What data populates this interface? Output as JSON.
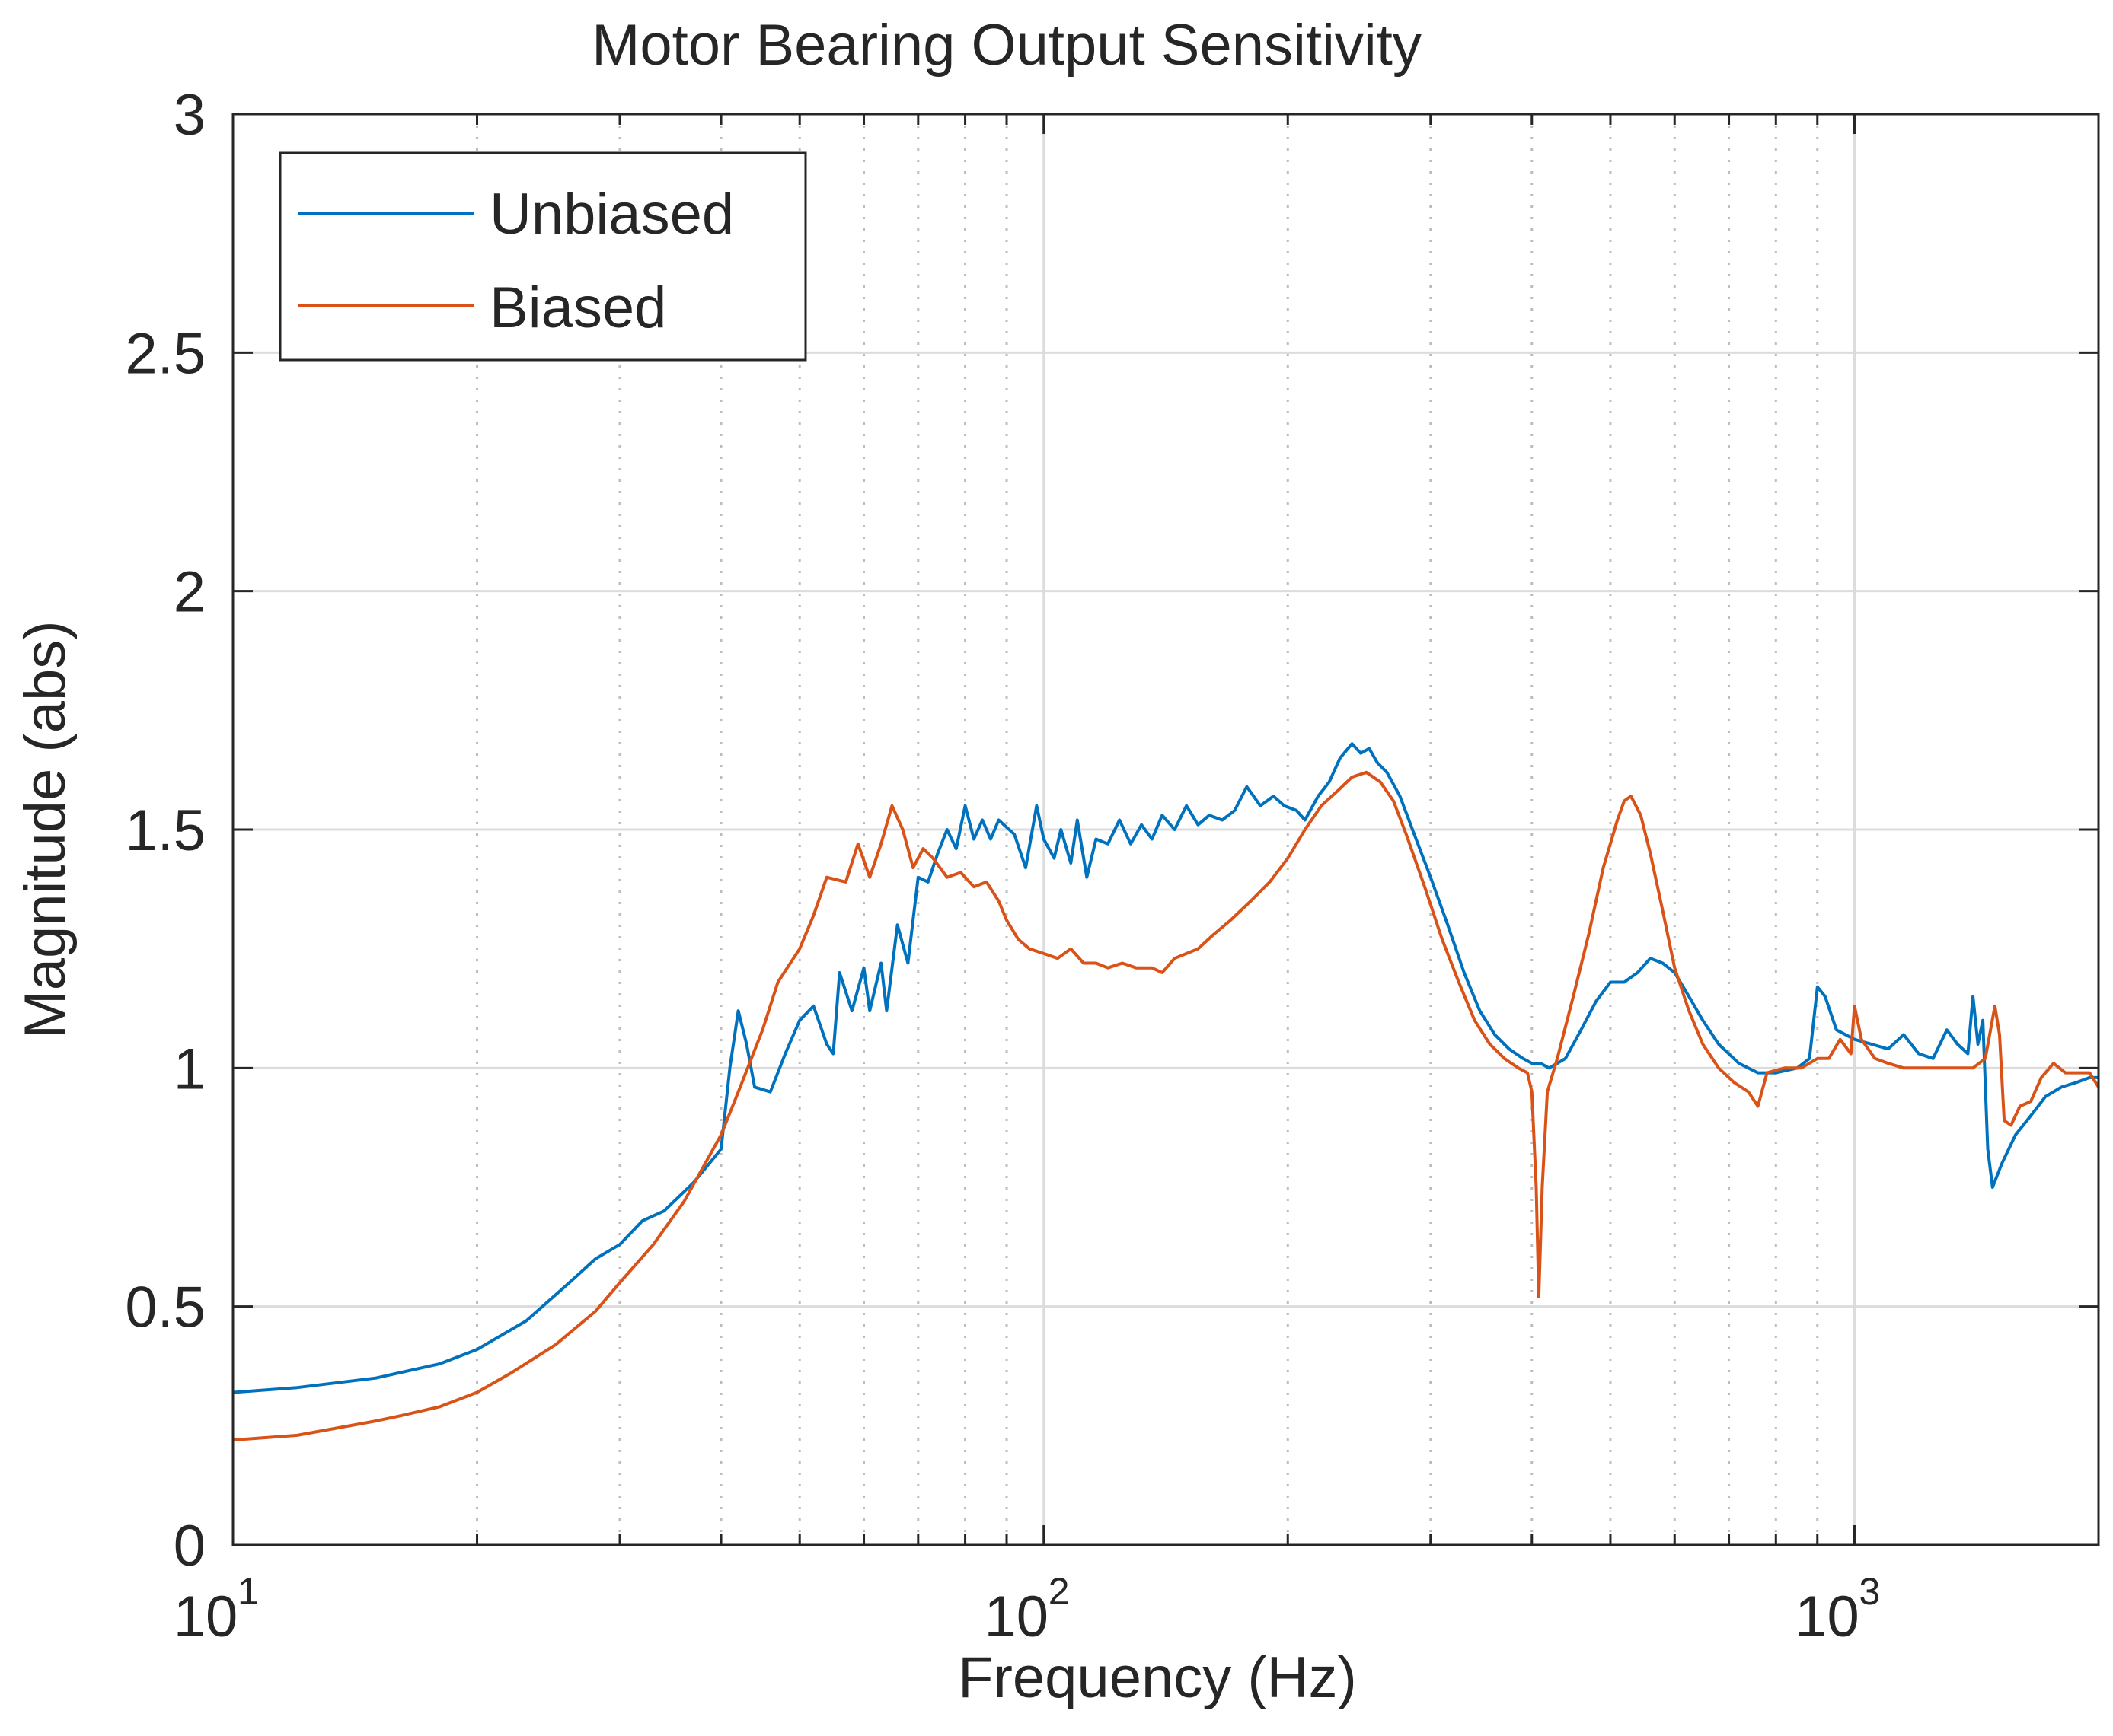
{
  "chart_data": {
    "type": "line",
    "title": "Motor Bearing Output Sensitivity",
    "xlabel": "Frequency  (Hz)",
    "ylabel": "Magnitude (abs)",
    "xscale": "log",
    "xlim": [
      10,
      2000
    ],
    "ylim": [
      0,
      3
    ],
    "grid": true,
    "legend_location": "top-left",
    "x_ticks": [
      {
        "value": 10,
        "base": "10",
        "exp": "1"
      },
      {
        "value": 100,
        "base": "10",
        "exp": "2"
      },
      {
        "value": 1000,
        "base": "10",
        "exp": "3"
      }
    ],
    "y_ticks": [
      {
        "value": 0,
        "label": "0"
      },
      {
        "value": 0.5,
        "label": "0.5"
      },
      {
        "value": 1,
        "label": "1"
      },
      {
        "value": 1.5,
        "label": "1.5"
      },
      {
        "value": 2,
        "label": "2"
      },
      {
        "value": 2.5,
        "label": "2.5"
      },
      {
        "value": 3,
        "label": "3"
      }
    ],
    "series": [
      {
        "name": "Unbiased",
        "color": "#0072BD",
        "points": [
          [
            10,
            0.32
          ],
          [
            12,
            0.33
          ],
          [
            15,
            0.35
          ],
          [
            18,
            0.38
          ],
          [
            20,
            0.41
          ],
          [
            23,
            0.47
          ],
          [
            26,
            0.55
          ],
          [
            28,
            0.6
          ],
          [
            30,
            0.63
          ],
          [
            32,
            0.68
          ],
          [
            34,
            0.7
          ],
          [
            37,
            0.76
          ],
          [
            40,
            0.83
          ],
          [
            41,
            1.0
          ],
          [
            42,
            1.12
          ],
          [
            43,
            1.05
          ],
          [
            44,
            0.96
          ],
          [
            46,
            0.95
          ],
          [
            48,
            1.03
          ],
          [
            50,
            1.1
          ],
          [
            52,
            1.13
          ],
          [
            54,
            1.05
          ],
          [
            55,
            1.03
          ],
          [
            56,
            1.2
          ],
          [
            58,
            1.12
          ],
          [
            60,
            1.21
          ],
          [
            61,
            1.12
          ],
          [
            63,
            1.22
          ],
          [
            64,
            1.12
          ],
          [
            66,
            1.3
          ],
          [
            68,
            1.22
          ],
          [
            70,
            1.4
          ],
          [
            72,
            1.39
          ],
          [
            74,
            1.45
          ],
          [
            76,
            1.5
          ],
          [
            78,
            1.46
          ],
          [
            80,
            1.55
          ],
          [
            82,
            1.48
          ],
          [
            84,
            1.52
          ],
          [
            86,
            1.48
          ],
          [
            88,
            1.52
          ],
          [
            92,
            1.49
          ],
          [
            95,
            1.42
          ],
          [
            98,
            1.55
          ],
          [
            100,
            1.48
          ],
          [
            103,
            1.44
          ],
          [
            105,
            1.5
          ],
          [
            108,
            1.43
          ],
          [
            110,
            1.52
          ],
          [
            113,
            1.4
          ],
          [
            116,
            1.48
          ],
          [
            120,
            1.47
          ],
          [
            124,
            1.52
          ],
          [
            128,
            1.47
          ],
          [
            132,
            1.51
          ],
          [
            136,
            1.48
          ],
          [
            140,
            1.53
          ],
          [
            145,
            1.5
          ],
          [
            150,
            1.55
          ],
          [
            155,
            1.51
          ],
          [
            160,
            1.53
          ],
          [
            166,
            1.52
          ],
          [
            172,
            1.54
          ],
          [
            178,
            1.59
          ],
          [
            185,
            1.55
          ],
          [
            192,
            1.57
          ],
          [
            198,
            1.55
          ],
          [
            205,
            1.54
          ],
          [
            210,
            1.52
          ],
          [
            218,
            1.57
          ],
          [
            225,
            1.6
          ],
          [
            232,
            1.65
          ],
          [
            240,
            1.68
          ],
          [
            246,
            1.66
          ],
          [
            252,
            1.67
          ],
          [
            258,
            1.64
          ],
          [
            265,
            1.62
          ],
          [
            275,
            1.57
          ],
          [
            285,
            1.5
          ],
          [
            300,
            1.4
          ],
          [
            315,
            1.3
          ],
          [
            330,
            1.2
          ],
          [
            345,
            1.12
          ],
          [
            360,
            1.07
          ],
          [
            375,
            1.04
          ],
          [
            390,
            1.02
          ],
          [
            400,
            1.01
          ],
          [
            410,
            1.01
          ],
          [
            420,
            1.0
          ],
          [
            430,
            1.01
          ],
          [
            440,
            1.02
          ],
          [
            460,
            1.08
          ],
          [
            480,
            1.14
          ],
          [
            500,
            1.18
          ],
          [
            520,
            1.18
          ],
          [
            540,
            1.2
          ],
          [
            560,
            1.23
          ],
          [
            580,
            1.22
          ],
          [
            600,
            1.2
          ],
          [
            625,
            1.15
          ],
          [
            650,
            1.1
          ],
          [
            680,
            1.05
          ],
          [
            720,
            1.01
          ],
          [
            760,
            0.99
          ],
          [
            800,
            0.99
          ],
          [
            850,
            1.0
          ],
          [
            880,
            1.02
          ],
          [
            900,
            1.17
          ],
          [
            920,
            1.15
          ],
          [
            950,
            1.08
          ],
          [
            1000,
            1.06
          ],
          [
            1050,
            1.05
          ],
          [
            1100,
            1.04
          ],
          [
            1150,
            1.07
          ],
          [
            1200,
            1.03
          ],
          [
            1250,
            1.02
          ],
          [
            1300,
            1.08
          ],
          [
            1340,
            1.05
          ],
          [
            1380,
            1.03
          ],
          [
            1400,
            1.15
          ],
          [
            1420,
            1.05
          ],
          [
            1440,
            1.1
          ],
          [
            1460,
            0.83
          ],
          [
            1480,
            0.75
          ],
          [
            1520,
            0.8
          ],
          [
            1580,
            0.86
          ],
          [
            1650,
            0.9
          ],
          [
            1720,
            0.94
          ],
          [
            1800,
            0.96
          ],
          [
            1880,
            0.97
          ],
          [
            1950,
            0.98
          ],
          [
            2000,
            0.98
          ]
        ]
      },
      {
        "name": "Biased",
        "color": "#D95319",
        "points": [
          [
            10,
            0.22
          ],
          [
            12,
            0.23
          ],
          [
            15,
            0.26
          ],
          [
            16,
            0.27
          ],
          [
            18,
            0.29
          ],
          [
            20,
            0.32
          ],
          [
            22,
            0.36
          ],
          [
            25,
            0.42
          ],
          [
            28,
            0.49
          ],
          [
            30,
            0.55
          ],
          [
            33,
            0.63
          ],
          [
            36,
            0.72
          ],
          [
            40,
            0.86
          ],
          [
            42,
            0.95
          ],
          [
            45,
            1.08
          ],
          [
            47,
            1.18
          ],
          [
            50,
            1.25
          ],
          [
            52,
            1.32
          ],
          [
            54,
            1.4
          ],
          [
            57,
            1.39
          ],
          [
            59,
            1.47
          ],
          [
            61,
            1.4
          ],
          [
            63,
            1.47
          ],
          [
            65,
            1.55
          ],
          [
            67,
            1.5
          ],
          [
            69,
            1.42
          ],
          [
            71,
            1.46
          ],
          [
            73,
            1.44
          ],
          [
            76,
            1.4
          ],
          [
            79,
            1.41
          ],
          [
            82,
            1.38
          ],
          [
            85,
            1.39
          ],
          [
            88,
            1.35
          ],
          [
            90,
            1.31
          ],
          [
            93,
            1.27
          ],
          [
            96,
            1.25
          ],
          [
            100,
            1.24
          ],
          [
            104,
            1.23
          ],
          [
            108,
            1.25
          ],
          [
            112,
            1.22
          ],
          [
            116,
            1.22
          ],
          [
            120,
            1.21
          ],
          [
            125,
            1.22
          ],
          [
            130,
            1.21
          ],
          [
            136,
            1.21
          ],
          [
            140,
            1.2
          ],
          [
            145,
            1.23
          ],
          [
            150,
            1.24
          ],
          [
            155,
            1.25
          ],
          [
            162,
            1.28
          ],
          [
            170,
            1.31
          ],
          [
            180,
            1.35
          ],
          [
            190,
            1.39
          ],
          [
            200,
            1.44
          ],
          [
            210,
            1.5
          ],
          [
            220,
            1.55
          ],
          [
            230,
            1.58
          ],
          [
            240,
            1.61
          ],
          [
            250,
            1.62
          ],
          [
            260,
            1.6
          ],
          [
            270,
            1.56
          ],
          [
            280,
            1.49
          ],
          [
            295,
            1.38
          ],
          [
            310,
            1.27
          ],
          [
            325,
            1.18
          ],
          [
            340,
            1.1
          ],
          [
            355,
            1.05
          ],
          [
            370,
            1.02
          ],
          [
            385,
            1.0
          ],
          [
            395,
            0.99
          ],
          [
            400,
            0.95
          ],
          [
            405,
            0.75
          ],
          [
            408,
            0.52
          ],
          [
            412,
            0.75
          ],
          [
            418,
            0.95
          ],
          [
            430,
            1.02
          ],
          [
            450,
            1.15
          ],
          [
            470,
            1.28
          ],
          [
            490,
            1.42
          ],
          [
            510,
            1.52
          ],
          [
            520,
            1.56
          ],
          [
            530,
            1.57
          ],
          [
            545,
            1.53
          ],
          [
            560,
            1.45
          ],
          [
            580,
            1.33
          ],
          [
            600,
            1.21
          ],
          [
            625,
            1.12
          ],
          [
            650,
            1.05
          ],
          [
            680,
            1.0
          ],
          [
            710,
            0.97
          ],
          [
            740,
            0.95
          ],
          [
            760,
            0.92
          ],
          [
            780,
            0.99
          ],
          [
            820,
            1.0
          ],
          [
            860,
            1.0
          ],
          [
            900,
            1.02
          ],
          [
            930,
            1.02
          ],
          [
            960,
            1.06
          ],
          [
            990,
            1.03
          ],
          [
            1000,
            1.13
          ],
          [
            1020,
            1.06
          ],
          [
            1060,
            1.02
          ],
          [
            1100,
            1.01
          ],
          [
            1150,
            1.0
          ],
          [
            1200,
            1.0
          ],
          [
            1300,
            1.0
          ],
          [
            1400,
            1.0
          ],
          [
            1450,
            1.02
          ],
          [
            1490,
            1.13
          ],
          [
            1510,
            1.07
          ],
          [
            1530,
            0.89
          ],
          [
            1560,
            0.88
          ],
          [
            1600,
            0.92
          ],
          [
            1650,
            0.93
          ],
          [
            1700,
            0.98
          ],
          [
            1760,
            1.01
          ],
          [
            1820,
            0.99
          ],
          [
            1880,
            0.99
          ],
          [
            1950,
            0.99
          ],
          [
            2000,
            0.96
          ]
        ]
      }
    ]
  }
}
